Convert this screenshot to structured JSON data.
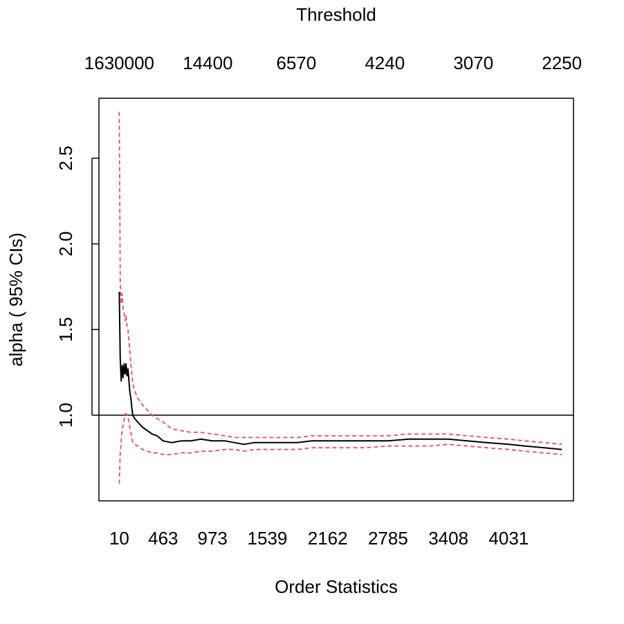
{
  "chart_data": {
    "type": "line",
    "title": "",
    "xlabel": "Order Statistics",
    "ylabel": "alpha ( 95% CIs)",
    "top_axis_label": "Threshold",
    "x_ticks": [
      "10",
      "463",
      "973",
      "1539",
      "2162",
      "2785",
      "3408",
      "4031"
    ],
    "top_ticks": [
      "1630000",
      "14400",
      "6570",
      "4240",
      "3070",
      "2250"
    ],
    "y_ticks": [
      "1.0",
      "1.5",
      "2.0",
      "2.5"
    ],
    "xlim": [
      -200,
      4700
    ],
    "ylim": [
      0.5,
      2.85
    ],
    "reference_line": 1.0,
    "grid": false,
    "colors": {
      "estimate": "#000000",
      "ci": "#df536b",
      "reference": "#000000"
    },
    "series": [
      {
        "name": "",
        "role": "estimate",
        "style": "solid",
        "x": [
          10,
          20,
          30,
          40,
          50,
          60,
          70,
          80,
          90,
          100,
          110,
          120,
          130,
          140,
          150,
          170,
          200,
          250,
          300,
          350,
          400,
          463,
          550,
          650,
          750,
          850,
          973,
          1100,
          1200,
          1300,
          1400,
          1539,
          1700,
          1850,
          2000,
          2162,
          2350,
          2550,
          2785,
          3000,
          3200,
          3408,
          3600,
          3800,
          4031,
          4200,
          4400,
          4580
        ],
        "y": [
          1.72,
          1.33,
          1.2,
          1.29,
          1.22,
          1.3,
          1.24,
          1.3,
          1.23,
          1.27,
          1.2,
          1.13,
          1.1,
          1.04,
          1.0,
          0.98,
          0.96,
          0.93,
          0.91,
          0.89,
          0.88,
          0.85,
          0.84,
          0.85,
          0.85,
          0.86,
          0.85,
          0.85,
          0.84,
          0.83,
          0.84,
          0.84,
          0.84,
          0.84,
          0.85,
          0.85,
          0.85,
          0.85,
          0.85,
          0.86,
          0.86,
          0.86,
          0.85,
          0.84,
          0.83,
          0.82,
          0.81,
          0.8
        ]
      },
      {
        "name": "",
        "role": "ci-upper",
        "style": "dashed",
        "x": [
          10,
          20,
          30,
          40,
          50,
          60,
          70,
          80,
          90,
          100,
          110,
          120,
          130,
          140,
          150,
          170,
          200,
          250,
          300,
          350,
          400,
          463,
          550,
          650,
          750,
          850,
          973,
          1100,
          1200,
          1300,
          1400,
          1539,
          1700,
          1850,
          2000,
          2162,
          2350,
          2550,
          2785,
          3000,
          3200,
          3408,
          3600,
          3800,
          4031,
          4200,
          4400,
          4580
        ],
        "y": [
          2.77,
          1.78,
          1.65,
          1.71,
          1.62,
          1.6,
          1.55,
          1.58,
          1.52,
          1.5,
          1.43,
          1.37,
          1.3,
          1.24,
          1.18,
          1.14,
          1.1,
          1.06,
          1.03,
          1.0,
          0.98,
          0.96,
          0.92,
          0.91,
          0.9,
          0.9,
          0.89,
          0.88,
          0.87,
          0.87,
          0.87,
          0.87,
          0.87,
          0.87,
          0.88,
          0.88,
          0.88,
          0.88,
          0.88,
          0.89,
          0.89,
          0.89,
          0.88,
          0.87,
          0.86,
          0.85,
          0.84,
          0.83
        ]
      },
      {
        "name": "",
        "role": "ci-lower",
        "style": "dashed",
        "x": [
          10,
          20,
          30,
          40,
          50,
          60,
          70,
          80,
          90,
          100,
          110,
          120,
          130,
          140,
          150,
          170,
          200,
          250,
          300,
          350,
          400,
          463,
          550,
          650,
          750,
          850,
          973,
          1100,
          1200,
          1300,
          1400,
          1539,
          1700,
          1850,
          2000,
          2162,
          2350,
          2550,
          2785,
          3000,
          3200,
          3408,
          3600,
          3800,
          4031,
          4200,
          4400,
          4580
        ],
        "y": [
          0.6,
          0.78,
          0.85,
          0.92,
          0.94,
          0.97,
          1.0,
          1.01,
          1.0,
          0.99,
          0.96,
          0.92,
          0.9,
          0.86,
          0.84,
          0.83,
          0.82,
          0.8,
          0.79,
          0.78,
          0.78,
          0.77,
          0.77,
          0.78,
          0.78,
          0.79,
          0.79,
          0.8,
          0.8,
          0.79,
          0.8,
          0.8,
          0.8,
          0.8,
          0.81,
          0.81,
          0.81,
          0.81,
          0.82,
          0.82,
          0.82,
          0.83,
          0.82,
          0.81,
          0.8,
          0.79,
          0.78,
          0.77
        ]
      }
    ]
  }
}
